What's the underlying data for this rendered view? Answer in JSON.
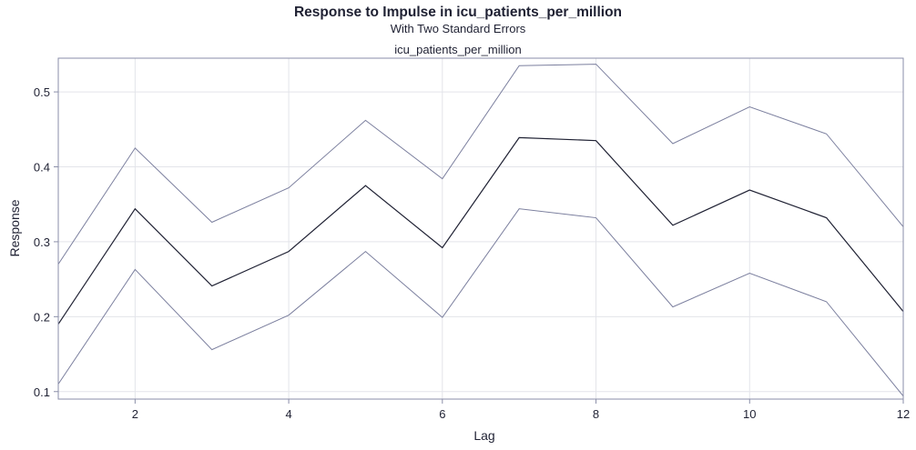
{
  "chart_data": {
    "type": "line",
    "title": "Response to Impulse in icu_patients_per_million",
    "subtitle": "With Two Standard Errors",
    "panel_title": "icu_patients_per_million",
    "xlabel": "Lag",
    "ylabel": "Response",
    "xlim": [
      1,
      12
    ],
    "ylim": [
      0.09,
      0.545
    ],
    "xticks": [
      2,
      4,
      6,
      8,
      10,
      12
    ],
    "yticks": [
      0.1,
      0.2,
      0.3,
      0.4,
      0.5
    ],
    "grid": true,
    "x": [
      1,
      2,
      3,
      4,
      5,
      6,
      7,
      8,
      9,
      10,
      11,
      12
    ],
    "series": [
      {
        "role": "upper",
        "color": "#7b7f9e",
        "values": [
          0.27,
          0.425,
          0.326,
          0.372,
          0.462,
          0.384,
          0.535,
          0.537,
          0.431,
          0.48,
          0.444,
          0.32
        ]
      },
      {
        "role": "response",
        "color": "#1f2133",
        "values": [
          0.19,
          0.344,
          0.241,
          0.287,
          0.375,
          0.292,
          0.439,
          0.435,
          0.322,
          0.369,
          0.332,
          0.207
        ]
      },
      {
        "role": "lower",
        "color": "#7b7f9e",
        "values": [
          0.11,
          0.263,
          0.156,
          0.202,
          0.287,
          0.199,
          0.344,
          0.332,
          0.213,
          0.258,
          0.22,
          0.094
        ]
      }
    ]
  }
}
